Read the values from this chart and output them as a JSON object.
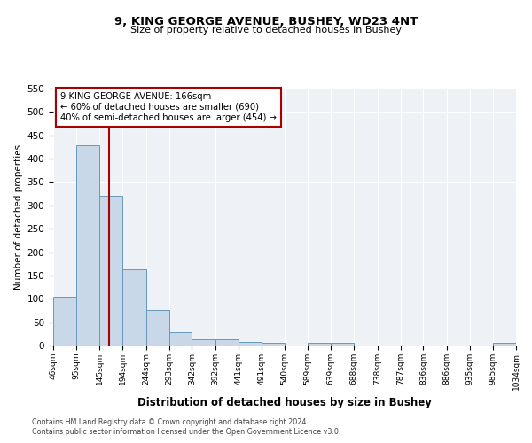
{
  "title1": "9, KING GEORGE AVENUE, BUSHEY, WD23 4NT",
  "title2": "Size of property relative to detached houses in Bushey",
  "xlabel": "Distribution of detached houses by size in Bushey",
  "ylabel": "Number of detached properties",
  "footnote1": "Contains HM Land Registry data © Crown copyright and database right 2024.",
  "footnote2": "Contains public sector information licensed under the Open Government Licence v3.0.",
  "annotation_line1": "9 KING GEORGE AVENUE: 166sqm",
  "annotation_line2": "← 60% of detached houses are smaller (690)",
  "annotation_line3": "40% of semi-detached houses are larger (454) →",
  "property_size": 166,
  "bin_edges": [
    46,
    95,
    145,
    194,
    244,
    293,
    342,
    392,
    441,
    491,
    540,
    589,
    639,
    688,
    738,
    787,
    836,
    886,
    935,
    985,
    1034
  ],
  "bar_heights": [
    105,
    428,
    320,
    163,
    75,
    28,
    14,
    14,
    8,
    5,
    0,
    5,
    5,
    0,
    0,
    0,
    0,
    0,
    0,
    5
  ],
  "bar_color": "#c8d8e8",
  "bar_edge_color": "#6699bb",
  "vline_color": "#aa0000",
  "annotation_box_edge": "#aa0000",
  "background_color": "#eef2f7",
  "ylim": [
    0,
    550
  ],
  "yticks": [
    0,
    50,
    100,
    150,
    200,
    250,
    300,
    350,
    400,
    450,
    500,
    550
  ]
}
